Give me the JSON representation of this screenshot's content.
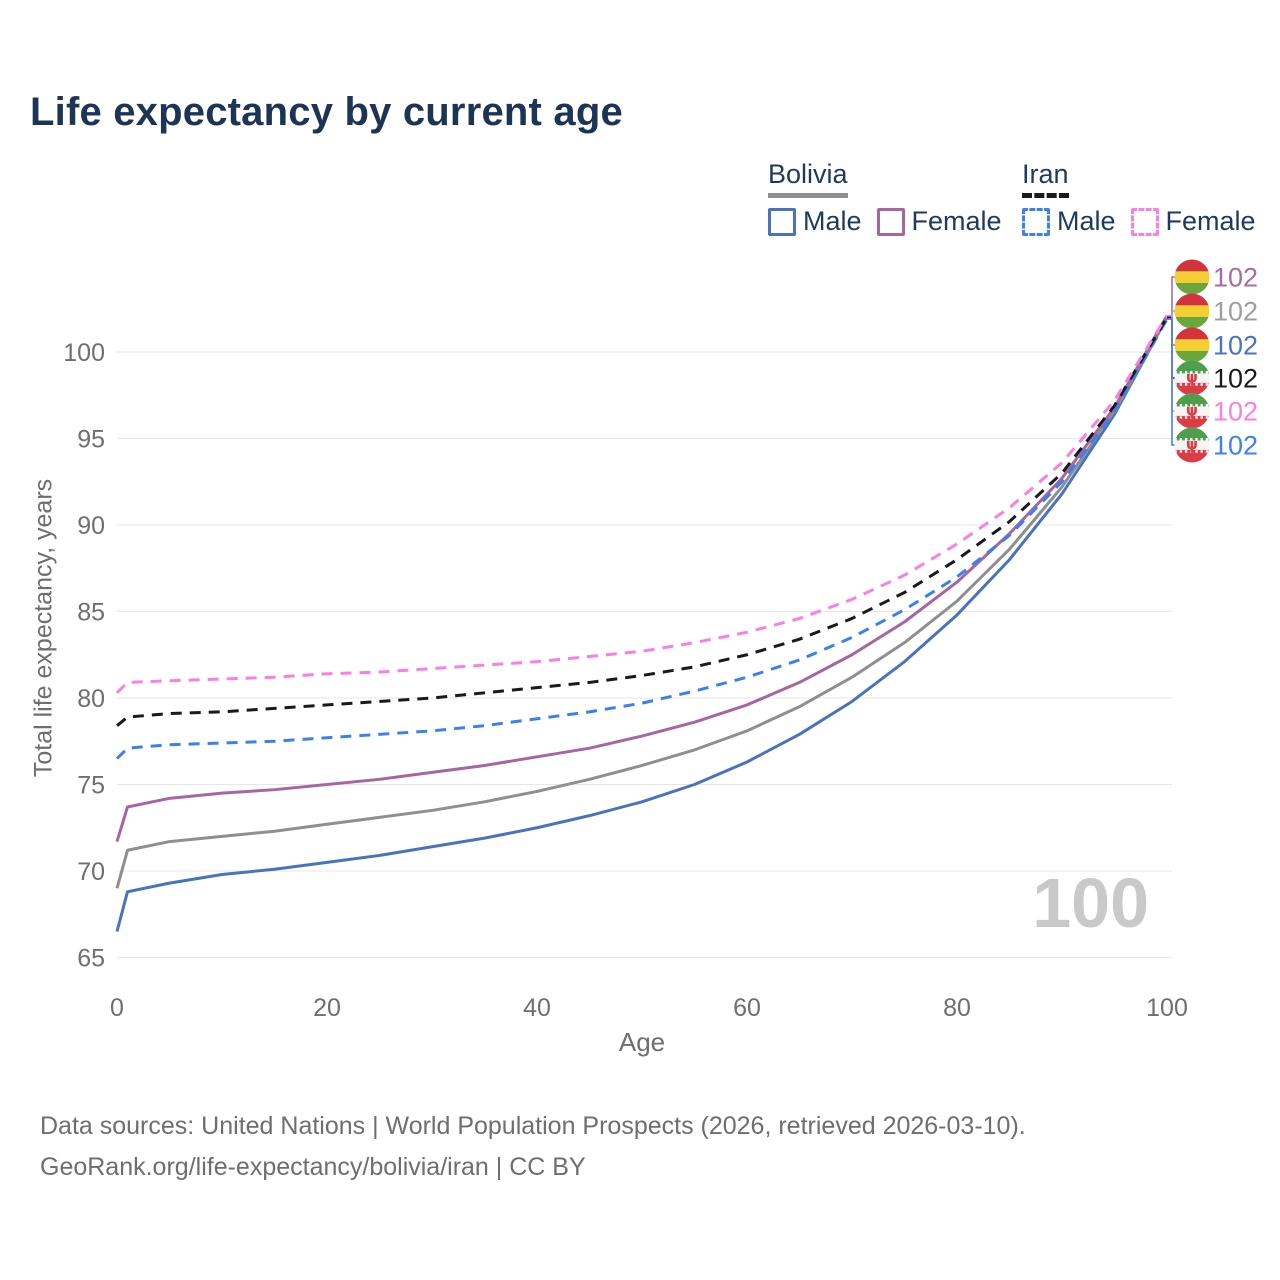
{
  "header": {
    "title": "Life expectancy by current age"
  },
  "legend": {
    "groups": [
      {
        "country": "Bolivia",
        "line_style": "solid",
        "underline_color": "#8f8f8f",
        "items": [
          {
            "label": "Male",
            "color": "#4a73bd"
          },
          {
            "label": "Female",
            "color": "#a765a2"
          }
        ]
      },
      {
        "country": "Iran",
        "line_style": "dashed",
        "underline_color": "#1a1a1a",
        "items": [
          {
            "label": "Male",
            "color": "#3c80ee"
          },
          {
            "label": "Female",
            "color": "#fb7ee4"
          }
        ]
      }
    ]
  },
  "chart_data": {
    "type": "line",
    "title": "Life expectancy by current age",
    "xlabel": "Age",
    "ylabel": "Total life expectancy, years",
    "xlim": [
      0,
      100
    ],
    "ylim": [
      65,
      100
    ],
    "x_ticks": [
      0,
      20,
      40,
      60,
      80,
      100
    ],
    "y_ticks": [
      65,
      70,
      75,
      80,
      85,
      90,
      95,
      100
    ],
    "grid": "horizontal",
    "legend_position": "top-right",
    "ages": [
      0,
      1,
      5,
      10,
      15,
      20,
      25,
      30,
      35,
      40,
      45,
      50,
      55,
      60,
      65,
      70,
      75,
      80,
      85,
      90,
      95,
      100
    ],
    "series": [
      {
        "name": "Bolivia Male",
        "country": "Bolivia",
        "sex": "Male",
        "style": "solid",
        "color": "#4a73bd",
        "values": [
          66.5,
          68.8,
          69.3,
          69.8,
          70.1,
          70.5,
          70.9,
          71.4,
          71.9,
          72.5,
          73.2,
          74.0,
          75.0,
          76.3,
          77.9,
          79.8,
          82.1,
          84.8,
          88.0,
          91.8,
          96.4,
          102.0
        ]
      },
      {
        "name": "Bolivia Both sexes",
        "country": "Bolivia",
        "sex": "Both sexes",
        "style": "solid",
        "color": "#8f8f8f",
        "values": [
          69.0,
          71.2,
          71.7,
          72.0,
          72.3,
          72.7,
          73.1,
          73.5,
          74.0,
          74.6,
          75.3,
          76.1,
          77.0,
          78.1,
          79.5,
          81.2,
          83.2,
          85.6,
          88.6,
          92.2,
          96.6,
          102.0
        ]
      },
      {
        "name": "Bolivia Female",
        "country": "Bolivia",
        "sex": "Female",
        "style": "solid",
        "color": "#a765a2",
        "values": [
          71.7,
          73.7,
          74.2,
          74.5,
          74.7,
          75.0,
          75.3,
          75.7,
          76.1,
          76.6,
          77.1,
          77.8,
          78.6,
          79.6,
          80.9,
          82.5,
          84.4,
          86.7,
          89.5,
          92.7,
          96.8,
          102.1
        ]
      },
      {
        "name": "Iran Male",
        "country": "Iran",
        "sex": "Male",
        "style": "dashed",
        "color": "#3c80ee",
        "values": [
          76.5,
          77.1,
          77.3,
          77.4,
          77.5,
          77.7,
          77.9,
          78.1,
          78.4,
          78.8,
          79.2,
          79.7,
          80.4,
          81.2,
          82.2,
          83.5,
          85.1,
          87.0,
          89.4,
          92.5,
          96.5,
          101.9
        ]
      },
      {
        "name": "Iran Both sexes",
        "country": "Iran",
        "sex": "Both sexes",
        "style": "dashed",
        "color": "#1a1a1a",
        "values": [
          78.4,
          78.9,
          79.1,
          79.2,
          79.4,
          79.6,
          79.8,
          80.0,
          80.3,
          80.6,
          80.9,
          81.3,
          81.8,
          82.5,
          83.4,
          84.6,
          86.1,
          88.0,
          90.2,
          93.0,
          96.9,
          102.0
        ]
      },
      {
        "name": "Iran Female",
        "country": "Iran",
        "sex": "Female",
        "style": "dashed",
        "color": "#fb7ee4",
        "values": [
          80.3,
          80.9,
          81.0,
          81.1,
          81.2,
          81.4,
          81.5,
          81.7,
          81.9,
          82.1,
          82.4,
          82.7,
          83.2,
          83.8,
          84.6,
          85.7,
          87.1,
          88.9,
          91.0,
          93.6,
          97.2,
          102.1
        ]
      }
    ],
    "end_labels": [
      {
        "value": "102",
        "series": "Bolivia Female",
        "flag": "bolivia",
        "color": "#a86ba8"
      },
      {
        "value": "102",
        "series": "Bolivia Both sexes",
        "flag": "bolivia",
        "color": "#9e9e9e"
      },
      {
        "value": "102",
        "series": "Bolivia Male",
        "flag": "bolivia",
        "color": "#4a74c2"
      },
      {
        "value": "102",
        "series": "Iran Both sexes",
        "flag": "iran",
        "color": "#1a1a1a"
      },
      {
        "value": "102",
        "series": "Iran Female",
        "flag": "iran",
        "color": "#fb7ee4"
      },
      {
        "value": "102",
        "series": "Iran Male",
        "flag": "iran",
        "color": "#3e82f0"
      }
    ],
    "age_counter": "100"
  },
  "footer": {
    "line1": "Data sources: United Nations | World Population Prospects (2026, retrieved 2026-03-10).",
    "line2": "GeoRank.org/life-expectancy/bolivia/iran | CC BY"
  }
}
